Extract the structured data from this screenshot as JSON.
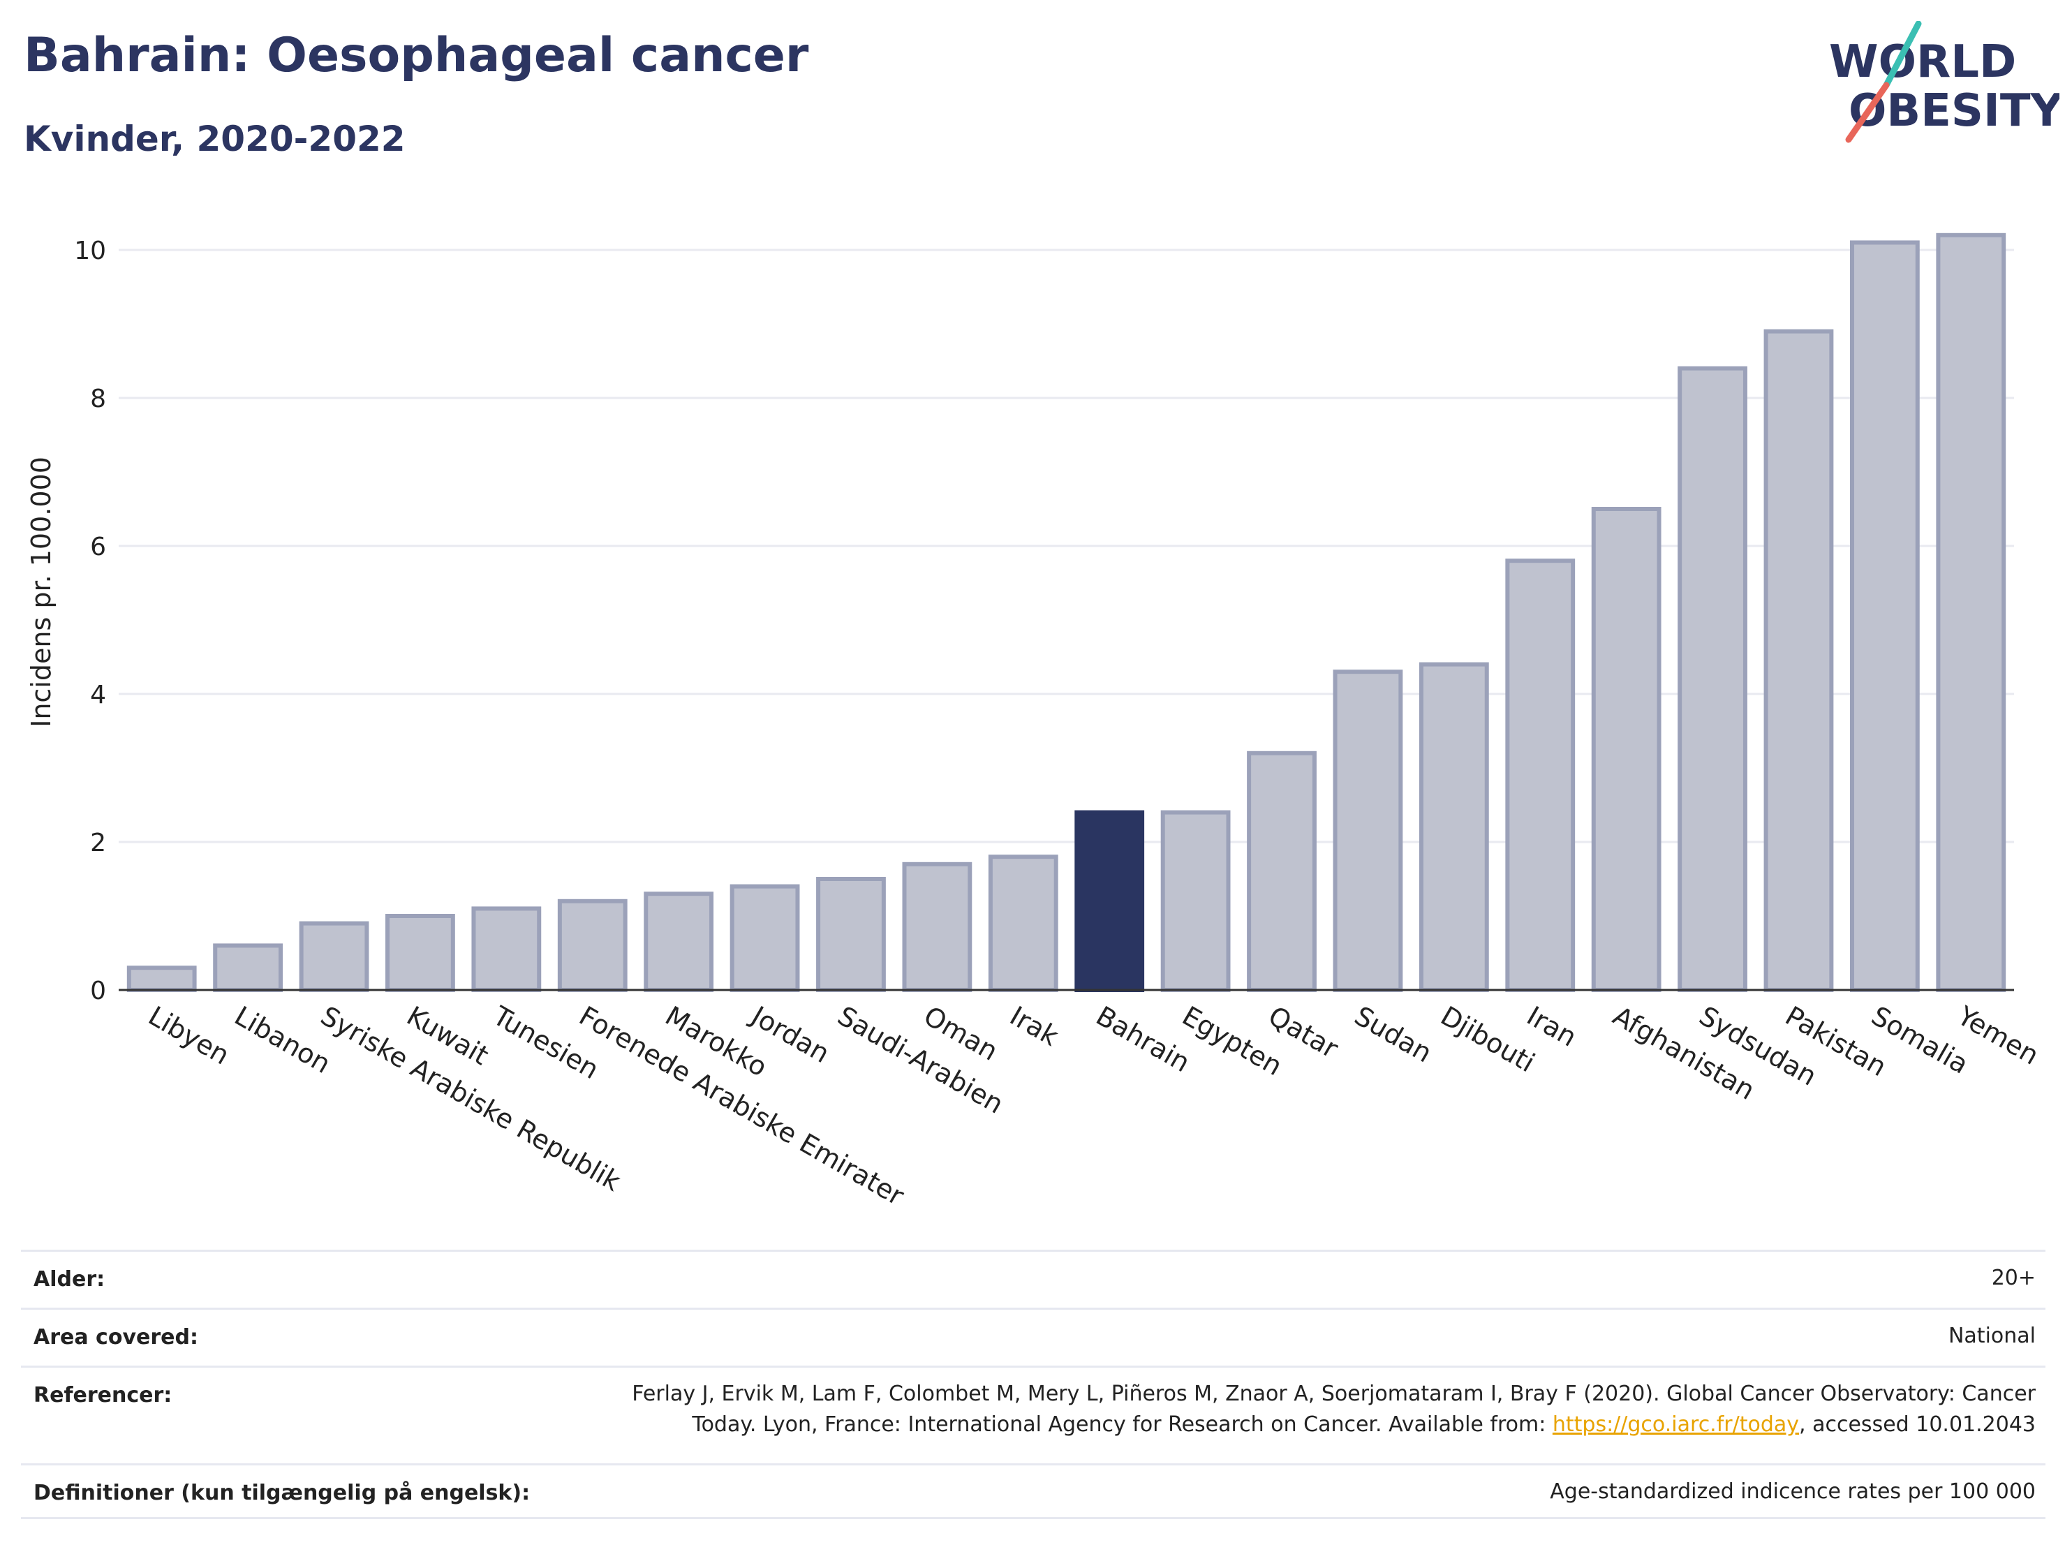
{
  "header": {
    "title": "Bahrain: Oesophageal cancer",
    "subtitle": "Kvinder, 2020-2022"
  },
  "logo": {
    "line1": "WORLD",
    "line2": "OBESITY",
    "colors": {
      "text": "#2c3561",
      "slash_top": "#3bbfb3",
      "slash_bottom": "#e8665a"
    }
  },
  "chart_data": {
    "type": "bar",
    "ylabel": "Incidens pr. 100.000",
    "ylim": [
      0,
      10.5
    ],
    "yticks": [
      0,
      2,
      4,
      6,
      8,
      10
    ],
    "grid": true,
    "categories": [
      "Libyen",
      "Libanon",
      "Syriske Arabiske Republik",
      "Kuwait",
      "Tunesien",
      "Forenede Arabiske Emirater",
      "Marokko",
      "Jordan",
      "Saudi-Arabien",
      "Oman",
      "Irak",
      "Bahrain",
      "Egypten",
      "Qatar",
      "Sudan",
      "Djibouti",
      "Iran",
      "Afghanistan",
      "Sydsudan",
      "Pakistan",
      "Somalia",
      "Yemen"
    ],
    "values": [
      0.3,
      0.6,
      0.9,
      1.0,
      1.1,
      1.2,
      1.3,
      1.4,
      1.5,
      1.7,
      1.8,
      2.4,
      2.4,
      3.2,
      4.3,
      4.4,
      5.8,
      6.5,
      8.4,
      8.9,
      10.1,
      10.2
    ],
    "highlight": "Bahrain",
    "colors": {
      "bar": "#bfc2cf",
      "bar_border": "#9ba1b9",
      "highlight": "#2a3561",
      "grid": "#e9eaf0",
      "axis": "#333333"
    }
  },
  "meta": {
    "age_label": "Alder:",
    "age_value": "20+",
    "area_label": "Area covered:",
    "area_value": "National",
    "ref_label": "Referencer:",
    "ref_line1": "Ferlay J, Ervik M, Lam F, Colombet M, Mery L, Piñeros M, Znaor A, Soerjomataram I, Bray F (2020). Global Cancer Observatory: Cancer",
    "ref_line2_pre": "Today. Lyon, France: International Agency for Research on Cancer. Available from: ",
    "ref_link": "https://gco.iarc.fr/today",
    "ref_line2_post": ", accessed 10.01.2043",
    "def_label": "Definitioner (kun tilgængelig på engelsk):",
    "def_value": "Age-standardized indicence rates per 100 000"
  }
}
